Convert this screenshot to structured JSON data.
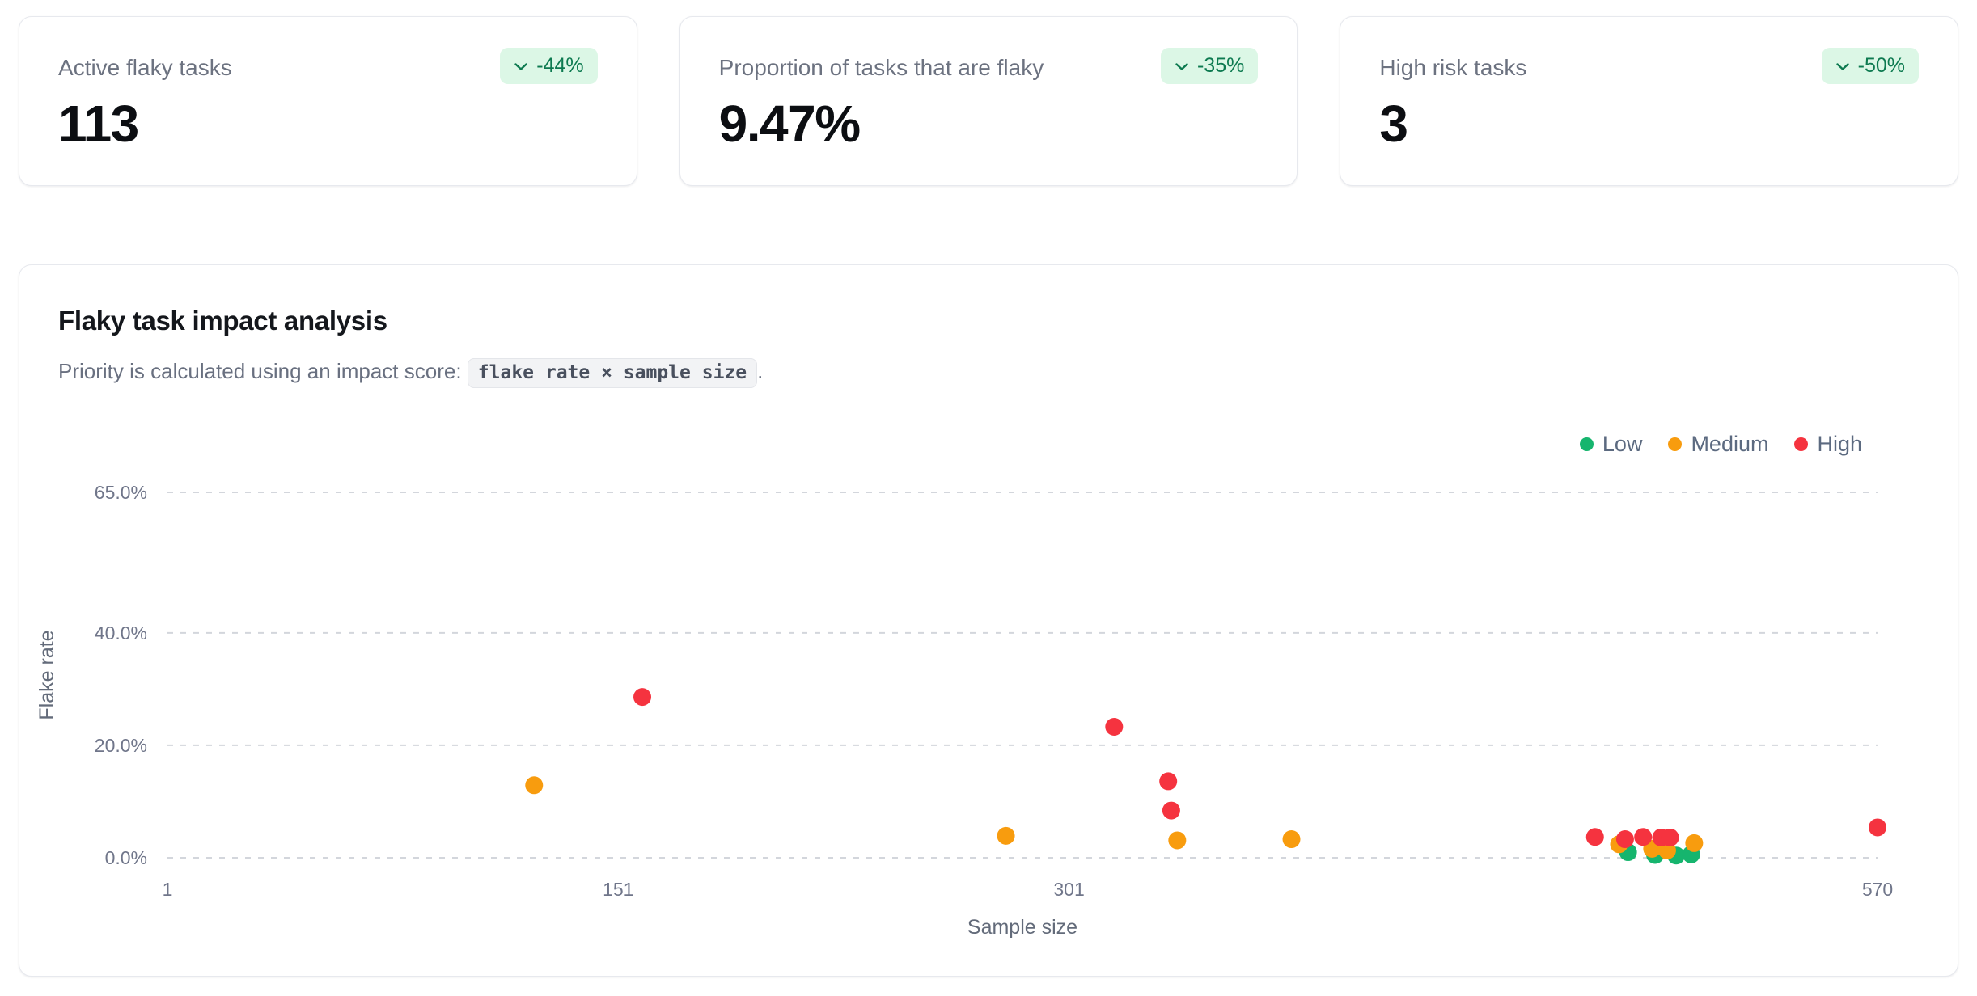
{
  "stats": [
    {
      "label": "Active flaky tasks",
      "value": "113",
      "delta": "-44%"
    },
    {
      "label": "Proportion of tasks that are flaky",
      "value": "9.47%",
      "delta": "-35%"
    },
    {
      "label": "High risk tasks",
      "value": "3",
      "delta": "-50%"
    }
  ],
  "badge_colors": {
    "background": "#dcf7e6",
    "text": "#0d7a50"
  },
  "chart_card": {
    "title": "Flaky task impact analysis",
    "subtitle_prefix": "Priority is calculated using an impact score: ",
    "subtitle_code": "flake rate × sample size",
    "subtitle_suffix": "."
  },
  "chart_data": {
    "type": "scatter",
    "title": "Flaky task impact analysis",
    "xlabel": "Sample size",
    "ylabel": "Flake rate",
    "x_range": [
      1,
      570
    ],
    "y_range_pct": [
      0,
      65
    ],
    "x_ticks": [
      1,
      151,
      301,
      570
    ],
    "y_ticks_pct": [
      0,
      20,
      40,
      65
    ],
    "y_tick_labels": [
      "0.0%",
      "20.0%",
      "40.0%",
      "65.0%"
    ],
    "grid": "horizontal-dashed",
    "gridline_color": "#d3d6dc",
    "tick_color": "#70768a",
    "axis_label_color": "#636b7a",
    "legend": {
      "position": "top-right",
      "entries": [
        {
          "label": "Low",
          "color": "#16b56e"
        },
        {
          "label": "Medium",
          "color": "#f89c0e"
        },
        {
          "label": "High",
          "color": "#f5333f"
        }
      ]
    },
    "series": [
      {
        "name": "Low",
        "color": "#16b56e",
        "points": [
          {
            "x": 487,
            "y": 1.0
          },
          {
            "x": 496,
            "y": 0.5
          },
          {
            "x": 503,
            "y": 0.4
          },
          {
            "x": 508,
            "y": 0.6
          }
        ]
      },
      {
        "name": "Medium",
        "color": "#f89c0e",
        "points": [
          {
            "x": 123,
            "y": 12.9
          },
          {
            "x": 280,
            "y": 3.9
          },
          {
            "x": 337,
            "y": 3.1
          },
          {
            "x": 375,
            "y": 3.3
          },
          {
            "x": 484,
            "y": 2.4
          },
          {
            "x": 495,
            "y": 1.6
          },
          {
            "x": 500,
            "y": 1.3
          },
          {
            "x": 509,
            "y": 2.6
          }
        ]
      },
      {
        "name": "High",
        "color": "#f5333f",
        "points": [
          {
            "x": 159,
            "y": 28.6
          },
          {
            "x": 316,
            "y": 23.3
          },
          {
            "x": 334,
            "y": 13.6
          },
          {
            "x": 335,
            "y": 8.4
          },
          {
            "x": 476,
            "y": 3.7
          },
          {
            "x": 486,
            "y": 3.3
          },
          {
            "x": 492,
            "y": 3.7
          },
          {
            "x": 498,
            "y": 3.6
          },
          {
            "x": 501,
            "y": 3.6
          },
          {
            "x": 570,
            "y": 5.4
          }
        ]
      }
    ]
  }
}
